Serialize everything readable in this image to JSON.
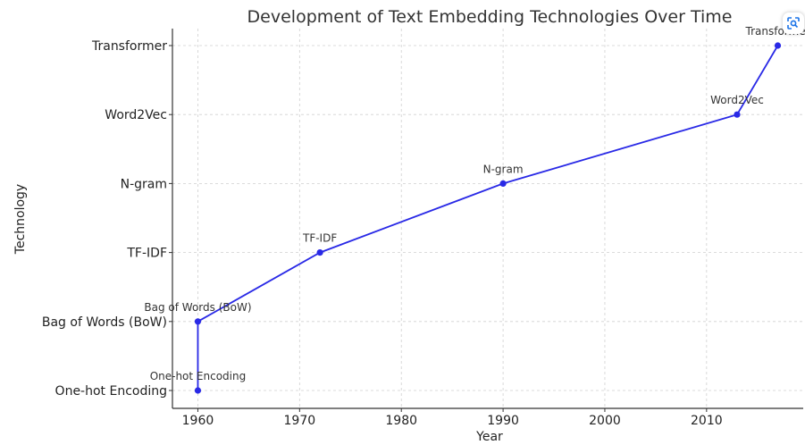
{
  "chart_data": {
    "type": "line",
    "title": "Development of Text Embedding Technologies Over Time",
    "xlabel": "Year",
    "ylabel": "Technology",
    "categories": [
      "One-hot Encoding",
      "Bag of Words (BoW)",
      "TF-IDF",
      "N-gram",
      "Word2Vec",
      "Transformer"
    ],
    "points": [
      {
        "year": 1960,
        "technology": "One-hot Encoding",
        "label": "One-hot Encoding"
      },
      {
        "year": 1960,
        "technology": "Bag of Words (BoW)",
        "label": "Bag of Words (BoW)"
      },
      {
        "year": 1972,
        "technology": "TF-IDF",
        "label": "TF-IDF"
      },
      {
        "year": 1990,
        "technology": "N-gram",
        "label": "N-gram"
      },
      {
        "year": 2013,
        "technology": "Word2Vec",
        "label": "Word2Vec"
      },
      {
        "year": 2017,
        "technology": "Transformer",
        "label": "Transformer"
      }
    ],
    "x_ticks": [
      1960,
      1970,
      1980,
      1990,
      2000,
      2010
    ],
    "xlim": [
      1957.5,
      2019.5
    ],
    "grid": true,
    "line_color": "#2929e6"
  },
  "ui": {
    "corner_button_icon": "image-search-icon",
    "accent_color": "#1a73e8"
  }
}
